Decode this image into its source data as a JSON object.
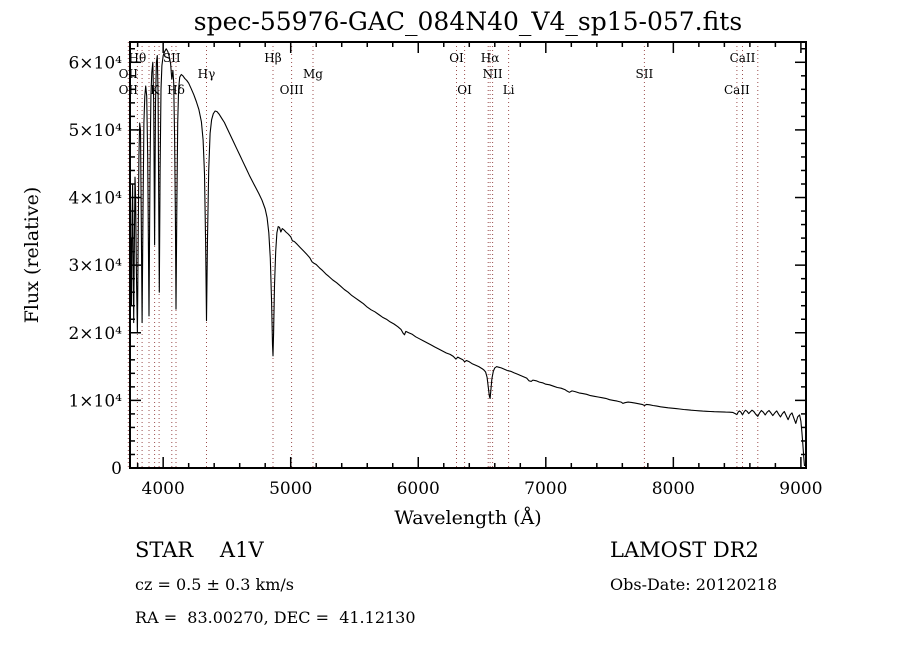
{
  "chart_data": {
    "type": "line",
    "title": "spec-55976-GAC_084N40_V4_sp15-057.fits",
    "xlabel": "Wavelength (Å)",
    "ylabel": "Flux (relative)",
    "xlim": [
      3740,
      9040
    ],
    "ylim": [
      0,
      63000
    ],
    "grid": false,
    "legend": "none",
    "x_ticks": [
      {
        "value": 4000,
        "label": "4000"
      },
      {
        "value": 5000,
        "label": "5000"
      },
      {
        "value": 6000,
        "label": "6000"
      },
      {
        "value": 7000,
        "label": "7000"
      },
      {
        "value": 8000,
        "label": "8000"
      },
      {
        "value": 9000,
        "label": "9000"
      }
    ],
    "y_ticks": [
      {
        "value": 0,
        "label": "0"
      },
      {
        "value": 10000,
        "label": "1×10⁴"
      },
      {
        "value": 20000,
        "label": "2×10⁴"
      },
      {
        "value": 30000,
        "label": "3×10⁴"
      },
      {
        "value": 40000,
        "label": "4×10⁴"
      },
      {
        "value": 50000,
        "label": "5×10⁴"
      },
      {
        "value": 60000,
        "label": "6×10⁴"
      }
    ],
    "x_minor_step": 200,
    "y_minor_step": 2000,
    "spectrum_color": "#000000",
    "marker_color": "#9b4e4e",
    "line_markers": [
      3727,
      3798,
      3835,
      3889,
      3933,
      3968,
      4068,
      4101,
      4340,
      4861,
      5007,
      5175,
      6300,
      6363,
      6548,
      6563,
      6583,
      6708,
      7773,
      8498,
      8542,
      8662
    ],
    "line_labels": [
      {
        "text": "Hθ",
        "wavelength": 3798,
        "row": 1
      },
      {
        "text": "SII",
        "wavelength": 4068,
        "row": 1
      },
      {
        "text": "Hβ",
        "wavelength": 4861,
        "row": 1
      },
      {
        "text": "OI",
        "wavelength": 6300,
        "row": 1
      },
      {
        "text": "Hα",
        "wavelength": 6563,
        "row": 1
      },
      {
        "text": "CaII",
        "wavelength": 8542,
        "row": 1
      },
      {
        "text": "OII",
        "wavelength": 3727,
        "row": 2
      },
      {
        "text": "Hγ",
        "wavelength": 4340,
        "row": 2
      },
      {
        "text": "Mg",
        "wavelength": 5175,
        "row": 2
      },
      {
        "text": "NII",
        "wavelength": 6583,
        "row": 2
      },
      {
        "text": "SII",
        "wavelength": 7773,
        "row": 2
      },
      {
        "text": "OII",
        "wavelength": 3727,
        "row": 3
      },
      {
        "text": "K",
        "wavelength": 3933,
        "row": 3
      },
      {
        "text": "Hδ",
        "wavelength": 4101,
        "row": 3
      },
      {
        "text": "OIII",
        "wavelength": 5007,
        "row": 3
      },
      {
        "text": "OI",
        "wavelength": 6363,
        "row": 3
      },
      {
        "text": "Li",
        "wavelength": 6708,
        "row": 3
      },
      {
        "text": "CaII",
        "wavelength": 8498,
        "row": 3
      }
    ],
    "spectrum": [
      [
        3740,
        15000
      ],
      [
        3744,
        26000
      ],
      [
        3748,
        34000
      ],
      [
        3752,
        24000
      ],
      [
        3756,
        36000
      ],
      [
        3760,
        42000
      ],
      [
        3764,
        32000
      ],
      [
        3769,
        21500
      ],
      [
        3774,
        32000
      ],
      [
        3779,
        43000
      ],
      [
        3784,
        40000
      ],
      [
        3790,
        29000
      ],
      [
        3798,
        20000
      ],
      [
        3804,
        34000
      ],
      [
        3810,
        46000
      ],
      [
        3816,
        51000
      ],
      [
        3822,
        50000
      ],
      [
        3828,
        38000
      ],
      [
        3835,
        21500
      ],
      [
        3842,
        38000
      ],
      [
        3849,
        51000
      ],
      [
        3856,
        55000
      ],
      [
        3863,
        56500
      ],
      [
        3871,
        55000
      ],
      [
        3879,
        46000
      ],
      [
        3889,
        22500
      ],
      [
        3897,
        44000
      ],
      [
        3904,
        55000
      ],
      [
        3911,
        58500
      ],
      [
        3919,
        60000
      ],
      [
        3926,
        54000
      ],
      [
        3933,
        33000
      ],
      [
        3940,
        54000
      ],
      [
        3947,
        60000
      ],
      [
        3954,
        61000
      ],
      [
        3960,
        55000
      ],
      [
        3965,
        40000
      ],
      [
        3970,
        26000
      ],
      [
        3976,
        44000
      ],
      [
        3983,
        56000
      ],
      [
        3990,
        59500
      ],
      [
        4000,
        61000
      ],
      [
        4012,
        61600
      ],
      [
        4024,
        62000
      ],
      [
        4036,
        61600
      ],
      [
        4048,
        60800
      ],
      [
        4058,
        59800
      ],
      [
        4068,
        57500
      ],
      [
        4076,
        58800
      ],
      [
        4083,
        57000
      ],
      [
        4090,
        49000
      ],
      [
        4096,
        37000
      ],
      [
        4101,
        23500
      ],
      [
        4107,
        38000
      ],
      [
        4114,
        51000
      ],
      [
        4121,
        56000
      ],
      [
        4130,
        57800
      ],
      [
        4142,
        58200
      ],
      [
        4155,
        58000
      ],
      [
        4170,
        57600
      ],
      [
        4185,
        57300
      ],
      [
        4200,
        56900
      ],
      [
        4220,
        56100
      ],
      [
        4240,
        55200
      ],
      [
        4260,
        54200
      ],
      [
        4280,
        53000
      ],
      [
        4300,
        51200
      ],
      [
        4313,
        48500
      ],
      [
        4324,
        43500
      ],
      [
        4333,
        33500
      ],
      [
        4340,
        21800
      ],
      [
        4348,
        34000
      ],
      [
        4357,
        44000
      ],
      [
        4368,
        49500
      ],
      [
        4380,
        51500
      ],
      [
        4393,
        52400
      ],
      [
        4407,
        52800
      ],
      [
        4422,
        52700
      ],
      [
        4440,
        52300
      ],
      [
        4460,
        51700
      ],
      [
        4480,
        51100
      ],
      [
        4500,
        50300
      ],
      [
        4525,
        49300
      ],
      [
        4550,
        48300
      ],
      [
        4575,
        47300
      ],
      [
        4600,
        46300
      ],
      [
        4625,
        45300
      ],
      [
        4650,
        44300
      ],
      [
        4675,
        43300
      ],
      [
        4700,
        42400
      ],
      [
        4725,
        41500
      ],
      [
        4750,
        40600
      ],
      [
        4775,
        39600
      ],
      [
        4800,
        38300
      ],
      [
        4815,
        37000
      ],
      [
        4828,
        34800
      ],
      [
        4840,
        31000
      ],
      [
        4850,
        24500
      ],
      [
        4857,
        18200
      ],
      [
        4861,
        16600
      ],
      [
        4866,
        20000
      ],
      [
        4873,
        27000
      ],
      [
        4882,
        32000
      ],
      [
        4892,
        34800
      ],
      [
        4902,
        35700
      ],
      [
        4912,
        35600
      ],
      [
        4922,
        34900
      ],
      [
        4934,
        35400
      ],
      [
        4948,
        35200
      ],
      [
        4962,
        34900
      ],
      [
        4980,
        34600
      ],
      [
        5000,
        34200
      ],
      [
        5013,
        33600
      ],
      [
        5028,
        33500
      ],
      [
        5050,
        33100
      ],
      [
        5075,
        32600
      ],
      [
        5100,
        32100
      ],
      [
        5125,
        31600
      ],
      [
        5150,
        31100
      ],
      [
        5167,
        30500
      ],
      [
        5180,
        30300
      ],
      [
        5200,
        30100
      ],
      [
        5225,
        29600
      ],
      [
        5250,
        29200
      ],
      [
        5275,
        28700
      ],
      [
        5300,
        28300
      ],
      [
        5330,
        27800
      ],
      [
        5360,
        27400
      ],
      [
        5390,
        26900
      ],
      [
        5420,
        26400
      ],
      [
        5450,
        26000
      ],
      [
        5480,
        25500
      ],
      [
        5510,
        25100
      ],
      [
        5540,
        24700
      ],
      [
        5570,
        24300
      ],
      [
        5600,
        23800
      ],
      [
        5630,
        23400
      ],
      [
        5660,
        23100
      ],
      [
        5690,
        22700
      ],
      [
        5720,
        22300
      ],
      [
        5750,
        22000
      ],
      [
        5780,
        21600
      ],
      [
        5810,
        21300
      ],
      [
        5840,
        20900
      ],
      [
        5865,
        20500
      ],
      [
        5882,
        19900
      ],
      [
        5892,
        19700
      ],
      [
        5902,
        20200
      ],
      [
        5925,
        20000
      ],
      [
        5950,
        19800
      ],
      [
        5980,
        19400
      ],
      [
        6010,
        19100
      ],
      [
        6040,
        18800
      ],
      [
        6070,
        18500
      ],
      [
        6100,
        18200
      ],
      [
        6130,
        17900
      ],
      [
        6160,
        17600
      ],
      [
        6190,
        17300
      ],
      [
        6220,
        17000
      ],
      [
        6250,
        16800
      ],
      [
        6275,
        16500
      ],
      [
        6295,
        16100
      ],
      [
        6310,
        16400
      ],
      [
        6330,
        16200
      ],
      [
        6350,
        16000
      ],
      [
        6363,
        15700
      ],
      [
        6378,
        15900
      ],
      [
        6400,
        15700
      ],
      [
        6425,
        15400
      ],
      [
        6450,
        15200
      ],
      [
        6475,
        15000
      ],
      [
        6500,
        14700
      ],
      [
        6515,
        14500
      ],
      [
        6528,
        14200
      ],
      [
        6540,
        13400
      ],
      [
        6550,
        11800
      ],
      [
        6558,
        10600
      ],
      [
        6563,
        10300
      ],
      [
        6569,
        11400
      ],
      [
        6577,
        13200
      ],
      [
        6588,
        14300
      ],
      [
        6600,
        14800
      ],
      [
        6615,
        15000
      ],
      [
        6630,
        14900
      ],
      [
        6650,
        14800
      ],
      [
        6675,
        14600
      ],
      [
        6700,
        14400
      ],
      [
        6725,
        14300
      ],
      [
        6750,
        14100
      ],
      [
        6775,
        13900
      ],
      [
        6800,
        13700
      ],
      [
        6825,
        13500
      ],
      [
        6850,
        13300
      ],
      [
        6868,
        12900
      ],
      [
        6885,
        12800
      ],
      [
        6900,
        13000
      ],
      [
        6925,
        12900
      ],
      [
        6950,
        12700
      ],
      [
        6975,
        12600
      ],
      [
        7000,
        12400
      ],
      [
        7030,
        12300
      ],
      [
        7060,
        12100
      ],
      [
        7090,
        11900
      ],
      [
        7120,
        11800
      ],
      [
        7150,
        11600
      ],
      [
        7165,
        11400
      ],
      [
        7185,
        11200
      ],
      [
        7205,
        11400
      ],
      [
        7230,
        11300
      ],
      [
        7260,
        11100
      ],
      [
        7290,
        11000
      ],
      [
        7320,
        10900
      ],
      [
        7350,
        10700
      ],
      [
        7380,
        10600
      ],
      [
        7410,
        10500
      ],
      [
        7440,
        10400
      ],
      [
        7470,
        10300
      ],
      [
        7500,
        10100
      ],
      [
        7530,
        10000
      ],
      [
        7560,
        9900
      ],
      [
        7590,
        9750
      ],
      [
        7605,
        9550
      ],
      [
        7620,
        9650
      ],
      [
        7645,
        9750
      ],
      [
        7670,
        9700
      ],
      [
        7700,
        9600
      ],
      [
        7730,
        9500
      ],
      [
        7755,
        9400
      ],
      [
        7774,
        9250
      ],
      [
        7790,
        9400
      ],
      [
        7815,
        9350
      ],
      [
        7840,
        9250
      ],
      [
        7870,
        9150
      ],
      [
        7900,
        9050
      ],
      [
        7930,
        8980
      ],
      [
        7960,
        8900
      ],
      [
        7990,
        8850
      ],
      [
        8020,
        8780
      ],
      [
        8050,
        8720
      ],
      [
        8080,
        8650
      ],
      [
        8110,
        8600
      ],
      [
        8140,
        8550
      ],
      [
        8170,
        8500
      ],
      [
        8200,
        8460
      ],
      [
        8230,
        8420
      ],
      [
        8260,
        8390
      ],
      [
        8290,
        8360
      ],
      [
        8320,
        8330
      ],
      [
        8350,
        8310
      ],
      [
        8380,
        8290
      ],
      [
        8410,
        8270
      ],
      [
        8440,
        8250
      ],
      [
        8465,
        8220
      ],
      [
        8485,
        8050
      ],
      [
        8498,
        7900
      ],
      [
        8508,
        8250
      ],
      [
        8518,
        8450
      ],
      [
        8530,
        8250
      ],
      [
        8542,
        7850
      ],
      [
        8553,
        8250
      ],
      [
        8566,
        8550
      ],
      [
        8579,
        8350
      ],
      [
        8591,
        8050
      ],
      [
        8603,
        8300
      ],
      [
        8617,
        8550
      ],
      [
        8631,
        8350
      ],
      [
        8646,
        7950
      ],
      [
        8662,
        7650
      ],
      [
        8676,
        8150
      ],
      [
        8690,
        8500
      ],
      [
        8705,
        8250
      ],
      [
        8720,
        7850
      ],
      [
        8735,
        8250
      ],
      [
        8750,
        8500
      ],
      [
        8765,
        8150
      ],
      [
        8780,
        7750
      ],
      [
        8795,
        8150
      ],
      [
        8810,
        8450
      ],
      [
        8825,
        7950
      ],
      [
        8840,
        7550
      ],
      [
        8855,
        8050
      ],
      [
        8870,
        8350
      ],
      [
        8885,
        7750
      ],
      [
        8900,
        7150
      ],
      [
        8915,
        7850
      ],
      [
        8930,
        8150
      ],
      [
        8945,
        7350
      ],
      [
        8960,
        6600
      ],
      [
        8975,
        7550
      ],
      [
        8990,
        7850
      ],
      [
        9000,
        6900
      ],
      [
        9008,
        5300
      ],
      [
        9015,
        3600
      ],
      [
        9022,
        1700
      ],
      [
        9028,
        300
      ]
    ]
  },
  "footer": {
    "class_label": "STAR    A1V",
    "cz": "cz = 0.5 ± 0.3 km/s",
    "coords": "RA =  83.00270, DEC =  41.12130",
    "survey": "LAMOST DR2",
    "obs_date": "Obs-Date: 20120218"
  }
}
